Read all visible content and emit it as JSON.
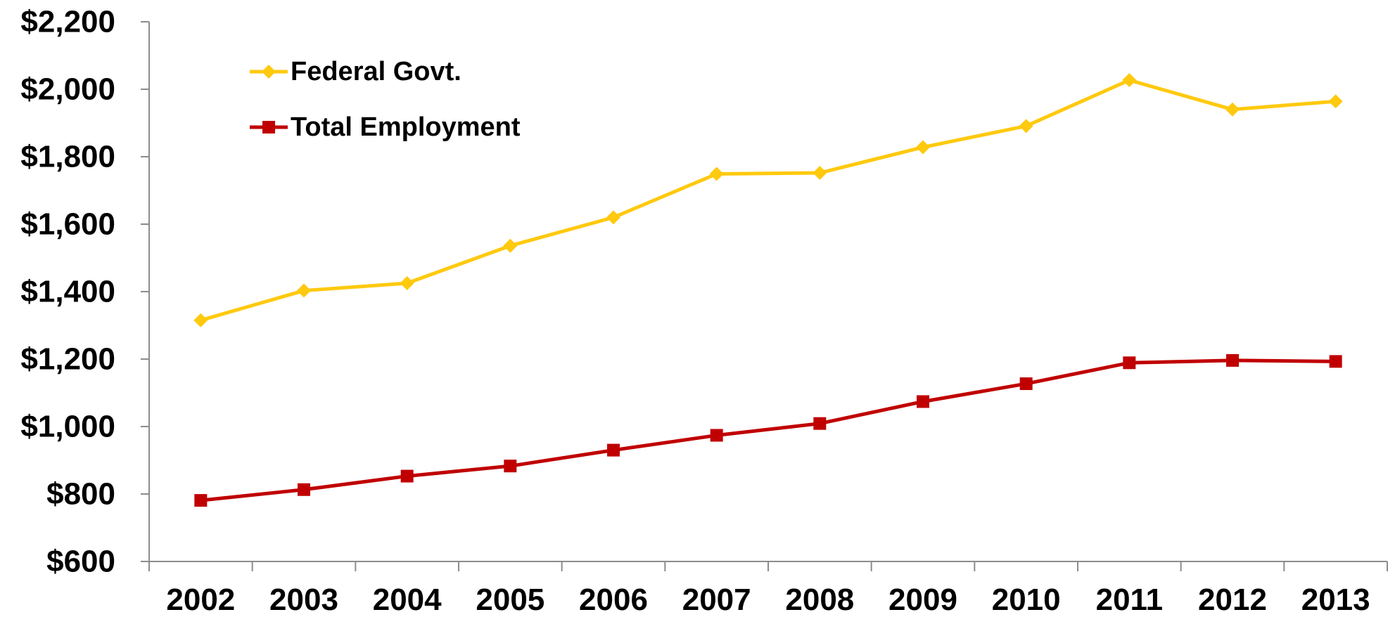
{
  "chart_data": {
    "type": "line",
    "title": "",
    "xlabel": "",
    "ylabel": "",
    "categories": [
      "2002",
      "2003",
      "2004",
      "2005",
      "2006",
      "2007",
      "2008",
      "2009",
      "2010",
      "2011",
      "2012",
      "2013"
    ],
    "ylim": [
      600,
      2200
    ],
    "yticks": [
      600,
      800,
      1000,
      1200,
      1400,
      1600,
      1800,
      2000,
      2200
    ],
    "ytick_labels": [
      "$600",
      "$800",
      "$1,000",
      "$1,200",
      "$1,400",
      "$1,600",
      "$1,800",
      "$2,000",
      "$2,200"
    ],
    "grid": false,
    "legend_position": "top-left",
    "series": [
      {
        "name": "Federal Govt.",
        "color": "#FFC90E",
        "marker": "diamond",
        "values": [
          1315,
          1403,
          1425,
          1536,
          1620,
          1749,
          1752,
          1828,
          1891,
          2027,
          1940,
          1964
        ]
      },
      {
        "name": "Total Employment",
        "color": "#C00000",
        "marker": "square",
        "values": [
          781,
          813,
          853,
          883,
          930,
          974,
          1009,
          1074,
          1127,
          1189,
          1196,
          1193
        ]
      }
    ]
  }
}
